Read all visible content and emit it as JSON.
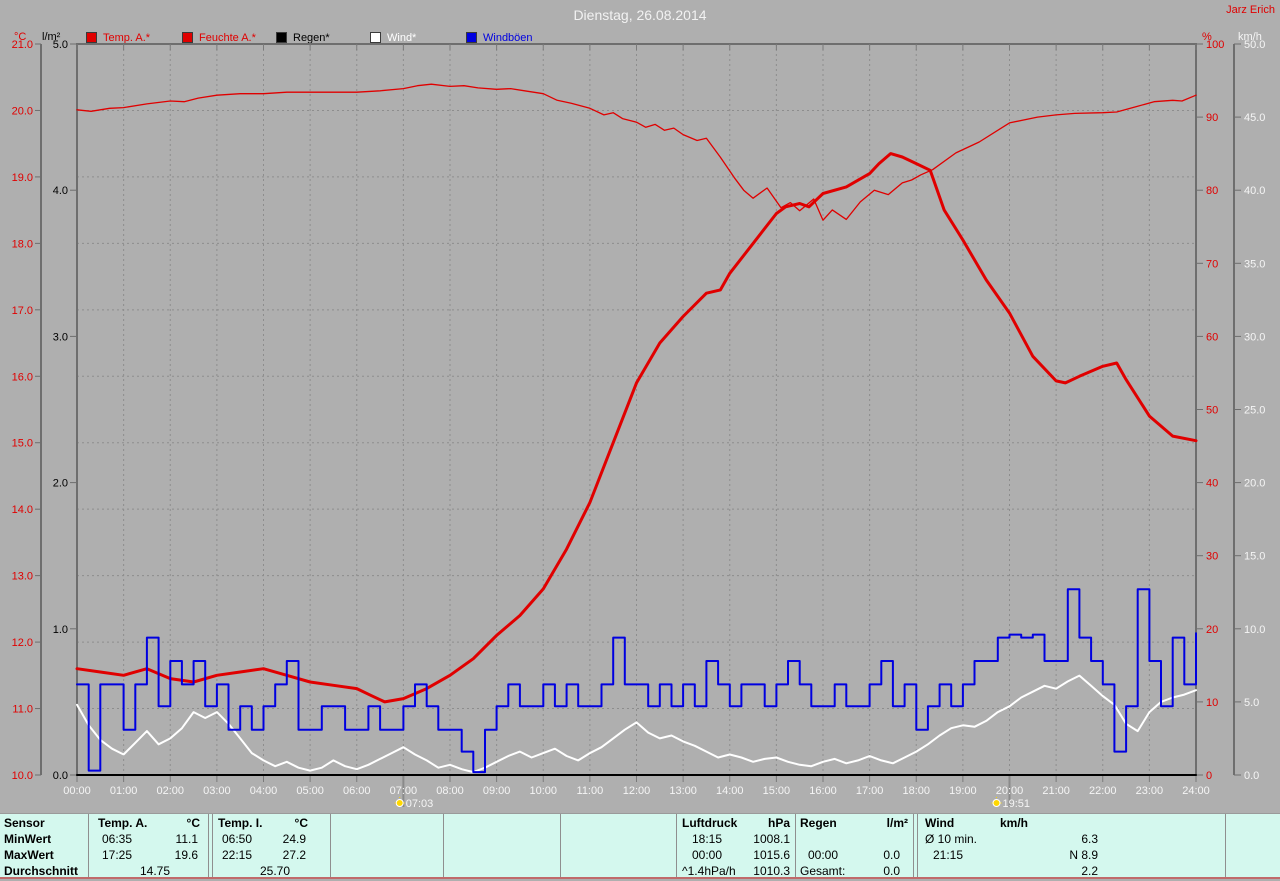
{
  "header": {
    "title": "Dienstag, 26.08.2014",
    "station": "Jarz Erich"
  },
  "legend": {
    "items": [
      {
        "label": "Temp. A.*",
        "color": "#e00000",
        "text_color": "#e00000"
      },
      {
        "label": "Feuchte A.*",
        "color": "#e00000",
        "text_color": "#e00000"
      },
      {
        "label": "Regen*",
        "color": "#000000",
        "text_color": "#000000"
      },
      {
        "label": "Wind*",
        "color": "#ffffff",
        "text_color": "#ffffff"
      },
      {
        "label": "Windböen",
        "color": "#0000e0",
        "text_color": "#0000e0"
      }
    ]
  },
  "chart_data": {
    "type": "line",
    "title": "Dienstag, 26.08.2014",
    "grid": "dashed, hourly vertical, 1°C horizontal",
    "x_axis": {
      "unit": "time",
      "range_hours": [
        0,
        24
      ],
      "tick_interval_hours": 1,
      "labels": [
        "00:00",
        "01:00",
        "02:00",
        "03:00",
        "04:00",
        "05:00",
        "06:00",
        "07:00",
        "08:00",
        "09:00",
        "10:00",
        "11:00",
        "12:00",
        "13:00",
        "14:00",
        "15:00",
        "16:00",
        "17:00",
        "18:00",
        "19:00",
        "20:00",
        "21:00",
        "22:00",
        "23:00",
        "24:00"
      ]
    },
    "axes": {
      "temp_c": {
        "label": "°C",
        "color": "#e00000",
        "min": 10,
        "max": 21,
        "tick_labels": [
          "21.0",
          "20.0",
          "19.0",
          "18.0",
          "17.0",
          "16.0",
          "15.0",
          "14.0",
          "13.0",
          "12.0",
          "11.0",
          "10.0"
        ]
      },
      "rain_lm2": {
        "label": "l/m²",
        "color": "#000000",
        "min": 0,
        "max": 5,
        "tick_labels": [
          "5.0",
          "4.0",
          "3.0",
          "2.0",
          "1.0",
          "0.0"
        ]
      },
      "humidity_pct": {
        "label": "%",
        "color": "#e00000",
        "min": 0,
        "max": 100,
        "tick_labels": [
          "100",
          "90",
          "80",
          "70",
          "60",
          "50",
          "40",
          "30",
          "20",
          "10",
          "0"
        ]
      },
      "wind_kmh": {
        "label": "km/h",
        "color": "#f5f5f5",
        "min": 0,
        "max": 50,
        "tick_labels": [
          "50.0",
          "45.0",
          "40.0",
          "35.0",
          "30.0",
          "25.0",
          "20.0",
          "15.0",
          "10.0",
          "5.0",
          "0.0"
        ]
      }
    },
    "markers": {
      "sunrise": {
        "icon": "sunrise-icon",
        "time": "07:03",
        "hour": 7.05
      },
      "sunset": {
        "icon": "sunset-icon",
        "time": "19:51",
        "hour": 19.85
      }
    },
    "series": [
      {
        "name": "Regen*",
        "axis": "rain_lm2",
        "color": "#000000",
        "width": 2,
        "points": [
          [
            0,
            0
          ],
          [
            24,
            0
          ]
        ]
      },
      {
        "name": "Feuchte A.*",
        "axis": "humidity_pct",
        "color": "#e00000",
        "width": 1.3,
        "points": [
          [
            0,
            91
          ],
          [
            0.3,
            90.8
          ],
          [
            0.7,
            91.2
          ],
          [
            1,
            91.3
          ],
          [
            1.5,
            91.8
          ],
          [
            2,
            92.2
          ],
          [
            2.3,
            92.1
          ],
          [
            2.6,
            92.6
          ],
          [
            3,
            93
          ],
          [
            3.5,
            93.2
          ],
          [
            4,
            93.2
          ],
          [
            4.5,
            93.4
          ],
          [
            5,
            93.4
          ],
          [
            5.5,
            93.4
          ],
          [
            6,
            93.4
          ],
          [
            6.5,
            93.6
          ],
          [
            7,
            93.9
          ],
          [
            7.3,
            94.3
          ],
          [
            7.6,
            94.5
          ],
          [
            8,
            94.2
          ],
          [
            8.3,
            94.3
          ],
          [
            8.6,
            94.0
          ],
          [
            9,
            93.8
          ],
          [
            9.3,
            93.9
          ],
          [
            9.6,
            93.6
          ],
          [
            10,
            93.2
          ],
          [
            10.3,
            92.3
          ],
          [
            10.6,
            91.9
          ],
          [
            11,
            91.2
          ],
          [
            11.3,
            90.3
          ],
          [
            11.5,
            90.6
          ],
          [
            11.7,
            89.8
          ],
          [
            12,
            89.3
          ],
          [
            12.2,
            88.6
          ],
          [
            12.4,
            89.0
          ],
          [
            12.6,
            88.2
          ],
          [
            12.8,
            88.5
          ],
          [
            13,
            87.6
          ],
          [
            13.3,
            86.8
          ],
          [
            13.5,
            87.1
          ],
          [
            13.8,
            84.5
          ],
          [
            14.1,
            81.7
          ],
          [
            14.3,
            80.0
          ],
          [
            14.5,
            78.9
          ],
          [
            14.8,
            80.3
          ],
          [
            15,
            78.5
          ],
          [
            15.1,
            77.6
          ],
          [
            15.3,
            78.3
          ],
          [
            15.5,
            77.2
          ],
          [
            15.8,
            78.8
          ],
          [
            16,
            75.9
          ],
          [
            16.2,
            77.3
          ],
          [
            16.5,
            76.0
          ],
          [
            16.8,
            78.4
          ],
          [
            17.1,
            80.0
          ],
          [
            17.4,
            79.4
          ],
          [
            17.7,
            81.0
          ],
          [
            17.9,
            81.4
          ],
          [
            18.1,
            82.1
          ],
          [
            18.35,
            82.8
          ],
          [
            18.85,
            85.1
          ],
          [
            19.35,
            86.6
          ],
          [
            20,
            89.2
          ],
          [
            20.6,
            90.0
          ],
          [
            21,
            90.3
          ],
          [
            21.4,
            90.5
          ],
          [
            22,
            90.6
          ],
          [
            22.3,
            90.7
          ],
          [
            22.7,
            91.4
          ],
          [
            23.1,
            92.1
          ],
          [
            23.5,
            92.3
          ],
          [
            23.7,
            92.2
          ],
          [
            24,
            93.0
          ]
        ]
      },
      {
        "name": "Temp. A.*",
        "axis": "temp_c",
        "color": "#e00000",
        "width": 3,
        "points": [
          [
            0,
            11.6
          ],
          [
            0.5,
            11.55
          ],
          [
            1,
            11.5
          ],
          [
            1.5,
            11.6
          ],
          [
            2,
            11.45
          ],
          [
            2.5,
            11.4
          ],
          [
            3,
            11.5
          ],
          [
            3.5,
            11.55
          ],
          [
            4,
            11.6
          ],
          [
            4.5,
            11.5
          ],
          [
            5,
            11.4
          ],
          [
            5.5,
            11.35
          ],
          [
            6,
            11.3
          ],
          [
            6.3,
            11.2
          ],
          [
            6.6,
            11.1
          ],
          [
            7,
            11.15
          ],
          [
            7.5,
            11.3
          ],
          [
            8,
            11.5
          ],
          [
            8.5,
            11.75
          ],
          [
            9,
            12.1
          ],
          [
            9.5,
            12.4
          ],
          [
            10,
            12.8
          ],
          [
            10.5,
            13.4
          ],
          [
            11,
            14.1
          ],
          [
            11.5,
            15.0
          ],
          [
            12,
            15.9
          ],
          [
            12.5,
            16.5
          ],
          [
            13,
            16.9
          ],
          [
            13.5,
            17.25
          ],
          [
            13.8,
            17.3
          ],
          [
            14,
            17.55
          ],
          [
            14.5,
            18.0
          ],
          [
            15,
            18.45
          ],
          [
            15.2,
            18.55
          ],
          [
            15.5,
            18.6
          ],
          [
            15.7,
            18.55
          ],
          [
            16,
            18.75
          ],
          [
            16.5,
            18.85
          ],
          [
            17,
            19.05
          ],
          [
            17.2,
            19.2
          ],
          [
            17.45,
            19.35
          ],
          [
            17.7,
            19.3
          ],
          [
            18,
            19.2
          ],
          [
            18.3,
            19.1
          ],
          [
            18.6,
            18.5
          ],
          [
            19,
            18.05
          ],
          [
            19.5,
            17.45
          ],
          [
            20,
            16.95
          ],
          [
            20.5,
            16.3
          ],
          [
            21,
            15.93
          ],
          [
            21.2,
            15.9
          ],
          [
            21.5,
            16.0
          ],
          [
            22,
            16.15
          ],
          [
            22.3,
            16.2
          ],
          [
            22.5,
            15.95
          ],
          [
            23,
            15.4
          ],
          [
            23.5,
            15.1
          ],
          [
            24,
            15.03
          ]
        ]
      },
      {
        "name": "Wind*",
        "axis": "wind_kmh",
        "color": "#ffffff",
        "width": 2,
        "t0": 0,
        "dt": 0.25,
        "values": [
          4.8,
          3.4,
          2.4,
          1.8,
          1.4,
          2.2,
          3.0,
          2.1,
          2.5,
          3.2,
          4.3,
          3.9,
          4.3,
          3.5,
          2.5,
          1.5,
          1.0,
          0.6,
          0.9,
          0.5,
          0.3,
          0.5,
          1.0,
          0.6,
          0.4,
          0.7,
          1.1,
          1.5,
          1.9,
          1.4,
          1.0,
          0.5,
          0.7,
          0.4,
          0.2,
          0.5,
          0.9,
          1.3,
          1.6,
          1.2,
          1.5,
          1.8,
          1.3,
          1.0,
          1.5,
          1.9,
          2.5,
          3.1,
          3.6,
          2.9,
          2.5,
          2.7,
          2.3,
          2.0,
          1.6,
          1.2,
          1.4,
          1.2,
          0.9,
          1.1,
          1.2,
          0.9,
          0.7,
          0.6,
          0.9,
          1.1,
          0.8,
          1.0,
          1.3,
          1.0,
          0.8,
          1.2,
          1.6,
          2.1,
          2.7,
          3.2,
          3.4,
          3.3,
          3.7,
          4.3,
          4.7,
          5.3,
          5.7,
          6.1,
          5.9,
          6.4,
          6.8,
          6.1,
          5.4,
          4.8,
          3.5,
          3.0,
          4.3,
          5.0,
          5.3,
          5.5,
          5.8
        ]
      },
      {
        "name": "Windböen",
        "axis": "wind_kmh",
        "color": "#0000e0",
        "width": 2,
        "step": true,
        "t0": 0,
        "dt": 0.25,
        "values": [
          6.2,
          0.3,
          6.2,
          6.2,
          3.1,
          6.2,
          9.4,
          4.7,
          7.8,
          6.2,
          7.8,
          4.7,
          6.2,
          3.1,
          4.7,
          3.1,
          4.7,
          6.2,
          7.8,
          3.1,
          3.1,
          4.7,
          4.7,
          3.1,
          3.1,
          4.7,
          3.1,
          3.1,
          4.7,
          6.2,
          4.7,
          3.1,
          3.1,
          1.6,
          0.2,
          3.1,
          4.7,
          6.2,
          4.7,
          4.7,
          6.2,
          4.7,
          6.2,
          4.7,
          4.7,
          6.2,
          9.4,
          6.2,
          6.2,
          4.7,
          6.2,
          4.7,
          6.2,
          4.7,
          7.8,
          6.2,
          4.7,
          6.2,
          6.2,
          4.7,
          6.2,
          7.8,
          6.2,
          4.7,
          4.7,
          6.2,
          4.7,
          4.7,
          6.2,
          7.8,
          4.7,
          6.2,
          3.1,
          4.7,
          6.2,
          4.7,
          6.2,
          7.8,
          7.8,
          9.4,
          9.6,
          9.4,
          9.6,
          7.8,
          7.8,
          12.7,
          9.4,
          7.8,
          6.2,
          1.6,
          4.7,
          12.7,
          7.8,
          4.7,
          9.4,
          6.2,
          9.7
        ]
      }
    ]
  },
  "table": {
    "row_labels": {
      "sensor": "Sensor",
      "min": "MinWert",
      "max": "MaxWert",
      "avg": "Durchschnitt"
    },
    "temp_a": {
      "header": "Temp. A.",
      "unit": "°C",
      "min_time": "06:35",
      "min": "11.1",
      "max_time": "17:25",
      "max": "19.6",
      "avg": "14.75"
    },
    "temp_i": {
      "header": "Temp. I.",
      "unit": "°C",
      "min_time": "06:50",
      "min": "24.9",
      "max_time": "22:15",
      "max": "27.2",
      "avg": "25.70"
    },
    "luftdruck": {
      "header": "Luftdruck",
      "unit": "hPa",
      "min_time": "18:15",
      "min": "1008.1",
      "max_time": "00:00",
      "max": "1015.6",
      "avg_label": "^1.4hPa/h",
      "avg": "1010.3"
    },
    "regen": {
      "header": "Regen",
      "unit": "l/m²",
      "max_time": "00:00",
      "max": "0.0",
      "avg_label": "Gesamt:",
      "avg": "0.0"
    },
    "wind": {
      "header": "Wind",
      "unit": "km/h",
      "row1_label": "Ø 10 min.",
      "row1": "6.3",
      "row2_label": "21:15",
      "row2": "N 8.9",
      "row3": "2.2"
    }
  }
}
